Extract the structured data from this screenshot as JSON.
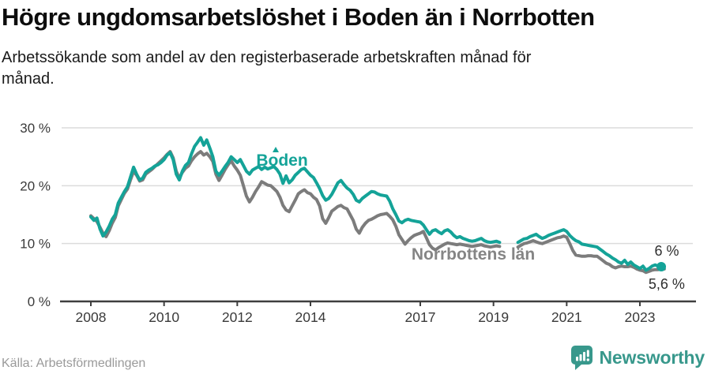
{
  "header": {
    "title": "Högre ungdomsarbetslöshet i Boden än i Norrbotten",
    "subtitle_line1": "Arbetssökande som andel av den registerbaserade arbetskraften månad för",
    "subtitle_line2": "månad."
  },
  "footer": {
    "source": "Källa: Arbetsförmedlingen",
    "brand": "Newsworthy",
    "brand_color": "#38988c"
  },
  "chart_data": {
    "type": "line",
    "x_unit": "month",
    "x_start_year": 2008,
    "x_end_label": "2023",
    "ylim": [
      0,
      30
    ],
    "grid": "horizontal",
    "x_ticks": [
      2008,
      2010,
      2012,
      2014,
      2017,
      2019,
      2021,
      2023
    ],
    "y_ticks": [
      {
        "value": 30,
        "label": "30 %"
      },
      {
        "value": 20,
        "label": "20 %"
      },
      {
        "value": 10,
        "label": "10 %"
      },
      {
        "value": 0,
        "label": "0 %"
      }
    ],
    "colors": {
      "grid": "#dcdcdc",
      "axis": "#3e3e3e",
      "tick_text": "#3a3a3a",
      "annotation_text": "#2e2e2e"
    },
    "data_gap": "Apr 2019 – Aug 2019 (no values plotted)",
    "series": [
      {
        "name": "Norrbottens län",
        "color": "#7c7c7c",
        "label_color": "#858585",
        "values": [
          14.8,
          14.3,
          13.8,
          12.8,
          11.8,
          11.2,
          12.2,
          13.5,
          14.5,
          16.5,
          17.6,
          18.7,
          19.4,
          21.0,
          22.5,
          21.8,
          20.8,
          21.0,
          22.0,
          22.4,
          22.8,
          23.3,
          23.8,
          24.3,
          24.8,
          25.4,
          25.9,
          24.8,
          22.5,
          21.3,
          22.3,
          23.0,
          23.4,
          24.3,
          25.0,
          25.5,
          25.9,
          25.3,
          25.6,
          25.0,
          24.2,
          22.0,
          20.9,
          21.8,
          22.8,
          23.6,
          24.3,
          23.4,
          22.7,
          21.8,
          20.0,
          18.2,
          17.2,
          18.0,
          19.0,
          19.8,
          20.7,
          20.4,
          20.1,
          20.0,
          19.5,
          19.0,
          18.0,
          16.6,
          15.8,
          15.5,
          16.5,
          17.5,
          18.6,
          19.0,
          19.3,
          18.8,
          18.6,
          18.0,
          17.6,
          16.5,
          14.3,
          13.5,
          14.5,
          15.6,
          16.0,
          16.4,
          16.6,
          16.2,
          16.0,
          15.0,
          14.0,
          12.5,
          11.8,
          12.8,
          13.5,
          14.0,
          14.2,
          14.5,
          14.8,
          15.0,
          15.1,
          15.2,
          14.7,
          14.1,
          13.0,
          11.5,
          10.7,
          9.9,
          10.5,
          11.0,
          11.4,
          11.6,
          11.8,
          12.1,
          11.0,
          9.8,
          9.2,
          8.9,
          9.3,
          9.6,
          9.9,
          10.1,
          10.0,
          9.9,
          9.8,
          9.9,
          9.8,
          9.7,
          9.6,
          9.5,
          9.6,
          9.7,
          9.8,
          9.6,
          9.5,
          9.4,
          9.5,
          9.6,
          9.5,
          null,
          null,
          null,
          null,
          null,
          9.4,
          9.7,
          10.0,
          10.1,
          10.3,
          10.5,
          10.3,
          10.1,
          10.0,
          10.2,
          10.4,
          10.6,
          10.8,
          11.0,
          11.1,
          11.3,
          11.1,
          10.0,
          8.8,
          8.0,
          7.9,
          7.8,
          7.8,
          7.9,
          7.9,
          7.8,
          7.8,
          7.4,
          7.0,
          6.6,
          6.4,
          6.0,
          5.8,
          6.0,
          6.1,
          6.0,
          6.0,
          6.1,
          5.9,
          5.6,
          5.4,
          5.3,
          5.0,
          5.2,
          5.4,
          5.5,
          5.5,
          5.6,
          5.6
        ],
        "end_value_label": "5,6 %"
      },
      {
        "name": "Boden",
        "color": "#14a398",
        "label_color": "#14a398",
        "values": [
          14.6,
          14.0,
          14.4,
          12.5,
          11.3,
          12.0,
          13.0,
          14.2,
          15.0,
          17.0,
          18.0,
          19.0,
          19.8,
          21.5,
          23.2,
          22.0,
          21.0,
          21.3,
          22.3,
          22.7,
          23.0,
          23.4,
          23.6,
          24.0,
          24.5,
          25.3,
          25.7,
          24.5,
          22.0,
          21.0,
          22.5,
          23.5,
          24.0,
          25.5,
          26.8,
          27.5,
          28.3,
          27.0,
          27.9,
          26.5,
          25.0,
          22.5,
          21.8,
          22.5,
          23.3,
          24.0,
          25.0,
          24.5,
          24.0,
          24.5,
          23.5,
          22.5,
          22.0,
          22.7,
          23.0,
          23.3,
          22.8,
          23.2,
          22.9,
          23.1,
          23.3,
          22.8,
          22.0,
          20.4,
          21.7,
          20.5,
          21.0,
          21.8,
          22.3,
          22.8,
          23.0,
          22.4,
          21.8,
          21.4,
          20.5,
          19.5,
          18.3,
          17.5,
          17.8,
          18.5,
          19.5,
          20.5,
          20.9,
          20.2,
          19.6,
          19.2,
          18.5,
          17.5,
          17.2,
          17.8,
          18.2,
          18.6,
          19.0,
          18.9,
          18.6,
          18.4,
          18.3,
          18.2,
          17.3,
          16.0,
          15.0,
          13.9,
          13.6,
          14.0,
          14.2,
          14.0,
          13.9,
          13.8,
          13.7,
          13.2,
          12.4,
          11.6,
          12.2,
          12.4,
          12.0,
          11.7,
          12.2,
          12.4,
          12.0,
          11.4,
          11.0,
          11.2,
          10.9,
          10.7,
          10.5,
          10.4,
          10.5,
          10.7,
          10.9,
          10.5,
          10.3,
          10.2,
          10.3,
          10.4,
          10.2,
          null,
          null,
          null,
          null,
          null,
          10.2,
          10.5,
          10.8,
          10.9,
          11.2,
          11.4,
          11.6,
          11.2,
          10.9,
          11.1,
          11.4,
          11.6,
          11.8,
          12.0,
          12.2,
          12.4,
          12.1,
          11.4,
          10.9,
          10.5,
          10.3,
          9.9,
          9.8,
          9.7,
          9.6,
          9.5,
          9.4,
          9.0,
          8.6,
          8.2,
          7.9,
          7.5,
          7.2,
          6.8,
          6.6,
          7.1,
          6.4,
          6.8,
          6.3,
          6.0,
          5.7,
          6.1,
          5.4,
          5.7,
          6.1,
          6.3,
          6.1,
          6.0
        ],
        "end_dot": true,
        "end_value_label": "6 %"
      }
    ]
  }
}
